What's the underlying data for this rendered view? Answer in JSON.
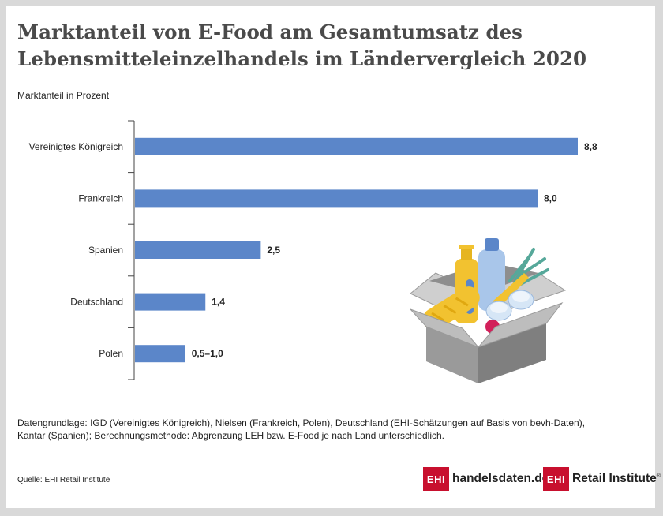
{
  "title_lines": [
    "Marktanteil von E-Food am Gesamtumsatz des",
    "Lebensmitteleinzelhandels im Ländervergleich 2020"
  ],
  "axis_label": "Marktanteil in Prozent",
  "chart_data": {
    "type": "bar",
    "orientation": "horizontal",
    "title": "Marktanteil von E-Food am Gesamtumsatz des Lebensmitteleinzelhandels im Ländervergleich 2020",
    "ylabel": "Marktanteil in Prozent",
    "categories": [
      "Vereinigtes Königreich",
      "Frankreich",
      "Spanien",
      "Deutschland",
      "Polen"
    ],
    "values": [
      8.8,
      8.0,
      2.5,
      1.4,
      1.0
    ],
    "value_labels": [
      "8,8",
      "8,0",
      "2,5",
      "1,4",
      "0,5–1,0"
    ],
    "xlim": [
      0,
      8.8
    ],
    "bar_color": "#5b86c9",
    "grid": false
  },
  "notes_lines": [
    "Datengrundlage: IGD (Vereinigtes Königreich), Nielsen (Frankreich, Polen), Deutschland (EHI-Schätzungen auf Basis von bevh-Daten),",
    "Kantar (Spanien); Berechnungsmethode: Abgrenzung LEH bzw. E-Food je nach Land unterschiedlich."
  ],
  "source": "Quelle: EHI Retail Institute",
  "logos": {
    "box": "EHI",
    "handelsdaten": "handelsdaten.de",
    "retail": "Retail Institute",
    "registered": "®",
    "brand_color": "#c8102e"
  }
}
